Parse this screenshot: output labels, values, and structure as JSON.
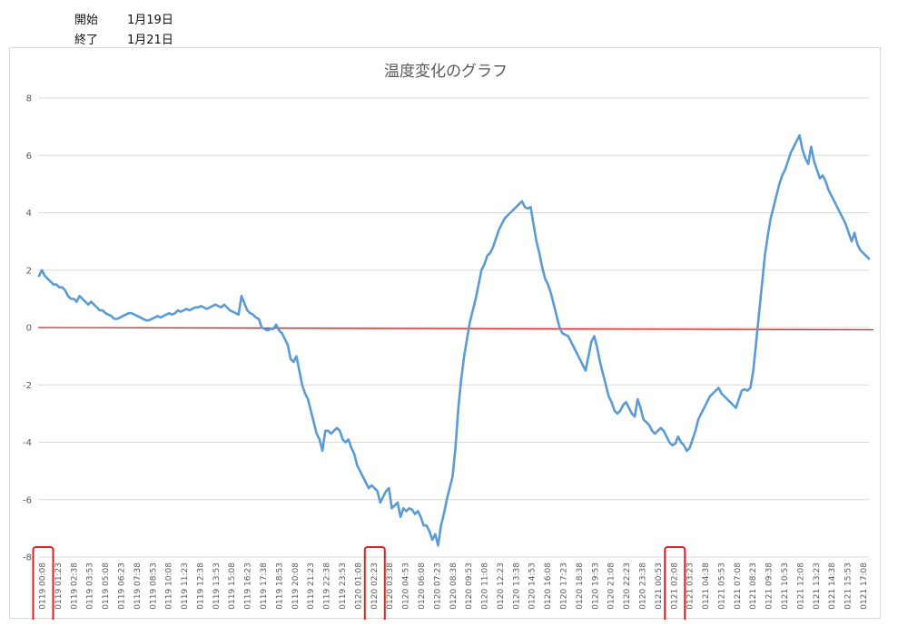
{
  "header": {
    "start_label": "開始",
    "start_value": "1月19日",
    "end_label": "終了",
    "end_value": "1月21日"
  },
  "chart_data": {
    "type": "line",
    "title": "温度変化のグラフ",
    "xlabel": "",
    "ylabel": "",
    "ylim": [
      -8,
      8
    ],
    "yticks": [
      -8,
      -6,
      -4,
      -2,
      0,
      2,
      4,
      6,
      8
    ],
    "grid": true,
    "legend": "none",
    "x_tick_labels": [
      "0119 00:08",
      "0119 01:23",
      "0119 02:38",
      "0119 03:53",
      "0119 05:08",
      "0119 06:23",
      "0119 07:38",
      "0119 08:53",
      "0119 10:08",
      "0119 11:23",
      "0119 12:38",
      "0119 13:53",
      "0119 15:08",
      "0119 16:23",
      "0119 17:38",
      "0119 18:53",
      "0119 20:08",
      "0119 21:23",
      "0119 22:38",
      "0119 23:53",
      "0120 01:08",
      "0120 02:23",
      "0120 03:38",
      "0120 04:53",
      "0120 06:08",
      "0120 07:23",
      "0120 08:38",
      "0120 09:53",
      "0120 11:08",
      "0120 12:23",
      "0120 13:38",
      "0120 14:53",
      "0120 16:08",
      "0120 17:23",
      "0120 18:38",
      "0120 19:53",
      "0120 21:08",
      "0120 22:23",
      "0120 23:38",
      "0121 00:53",
      "0121 02:08",
      "0121 03:23",
      "0121 04:38",
      "0121 05:53",
      "0121 07:08",
      "0121 08:23",
      "0121 09:38",
      "0121 10:53",
      "0121 12:08",
      "0121 13:23",
      "0121 14:38",
      "0121 15:53",
      "0121 17:08"
    ],
    "highlighted_ticks": [
      "0119 00:08",
      "0120 02:23",
      "0121 02:08"
    ],
    "reference_line": {
      "y": 0,
      "color": "#e02020"
    },
    "series_color": "#5b9bd5",
    "series": [
      {
        "values": [
          1.8,
          2.0,
          1.8,
          1.7,
          1.6,
          1.5,
          1.5,
          1.4,
          1.4,
          1.3,
          1.1,
          1.0,
          1.0,
          0.9,
          1.1,
          1.0,
          0.9,
          0.8,
          0.9,
          0.8,
          0.7,
          0.6,
          0.6,
          0.5,
          0.45,
          0.4,
          0.3,
          0.3,
          0.35,
          0.4,
          0.45,
          0.5,
          0.5,
          0.45,
          0.4,
          0.35,
          0.3,
          0.25,
          0.25,
          0.3,
          0.35,
          0.4,
          0.35,
          0.4,
          0.45,
          0.5,
          0.45,
          0.5,
          0.6,
          0.55,
          0.6,
          0.65,
          0.6,
          0.65,
          0.7,
          0.7,
          0.75,
          0.7,
          0.65,
          0.7,
          0.75,
          0.8,
          0.75,
          0.7,
          0.8,
          0.7,
          0.6,
          0.55,
          0.5,
          0.45,
          1.1,
          0.85,
          0.6,
          0.5,
          0.45,
          0.35,
          0.3,
          0.0,
          -0.05,
          -0.1,
          -0.05,
          -0.05,
          0.1,
          -0.1,
          -0.2,
          -0.4,
          -0.6,
          -1.1,
          -1.2,
          -1.0,
          -1.5,
          -2.0,
          -2.3,
          -2.5,
          -2.9,
          -3.3,
          -3.7,
          -3.9,
          -4.3,
          -3.6,
          -3.6,
          -3.7,
          -3.6,
          -3.5,
          -3.6,
          -3.9,
          -4.0,
          -3.9,
          -4.2,
          -4.4,
          -4.8,
          -5.0,
          -5.2,
          -5.4,
          -5.6,
          -5.5,
          -5.6,
          -5.7,
          -6.1,
          -5.9,
          -5.7,
          -5.6,
          -6.3,
          -6.2,
          -6.1,
          -6.6,
          -6.3,
          -6.4,
          -6.3,
          -6.35,
          -6.5,
          -6.4,
          -6.6,
          -6.9,
          -6.9,
          -7.1,
          -7.4,
          -7.2,
          -7.6,
          -6.9,
          -6.5,
          -6.0,
          -5.6,
          -5.2,
          -4.2,
          -2.8,
          -1.8,
          -1.0,
          -0.4,
          0.2,
          0.6,
          1.0,
          1.5,
          2.0,
          2.2,
          2.5,
          2.6,
          2.8,
          3.1,
          3.4,
          3.6,
          3.8,
          3.9,
          4.0,
          4.1,
          4.2,
          4.3,
          4.4,
          4.2,
          4.15,
          4.2,
          3.6,
          3.0,
          2.6,
          2.1,
          1.7,
          1.5,
          1.2,
          0.8,
          0.4,
          0.0,
          -0.2,
          -0.25,
          -0.3,
          -0.5,
          -0.7,
          -0.9,
          -1.1,
          -1.3,
          -1.5,
          -1.0,
          -0.5,
          -0.3,
          -0.7,
          -1.2,
          -1.6,
          -2.0,
          -2.4,
          -2.6,
          -2.9,
          -3.0,
          -2.9,
          -2.7,
          -2.6,
          -2.8,
          -3.0,
          -3.1,
          -2.5,
          -2.8,
          -3.2,
          -3.3,
          -3.4,
          -3.6,
          -3.7,
          -3.6,
          -3.5,
          -3.6,
          -3.8,
          -4.0,
          -4.1,
          -4.05,
          -3.8,
          -4.0,
          -4.1,
          -4.3,
          -4.2,
          -3.9,
          -3.6,
          -3.2,
          -3.0,
          -2.8,
          -2.6,
          -2.4,
          -2.3,
          -2.2,
          -2.1,
          -2.3,
          -2.4,
          -2.5,
          -2.6,
          -2.7,
          -2.8,
          -2.5,
          -2.2,
          -2.15,
          -2.2,
          -2.1,
          -1.5,
          -0.5,
          0.5,
          1.5,
          2.5,
          3.2,
          3.8,
          4.2,
          4.6,
          5.0,
          5.3,
          5.5,
          5.8,
          6.1,
          6.3,
          6.5,
          6.7,
          6.2,
          5.9,
          5.7,
          6.3,
          5.8,
          5.5,
          5.2,
          5.3,
          5.1,
          4.8,
          4.6,
          4.4,
          4.2,
          4.0,
          3.8,
          3.6,
          3.3,
          3.0,
          3.3,
          2.9,
          2.7,
          2.6,
          2.5,
          2.4
        ]
      }
    ]
  }
}
